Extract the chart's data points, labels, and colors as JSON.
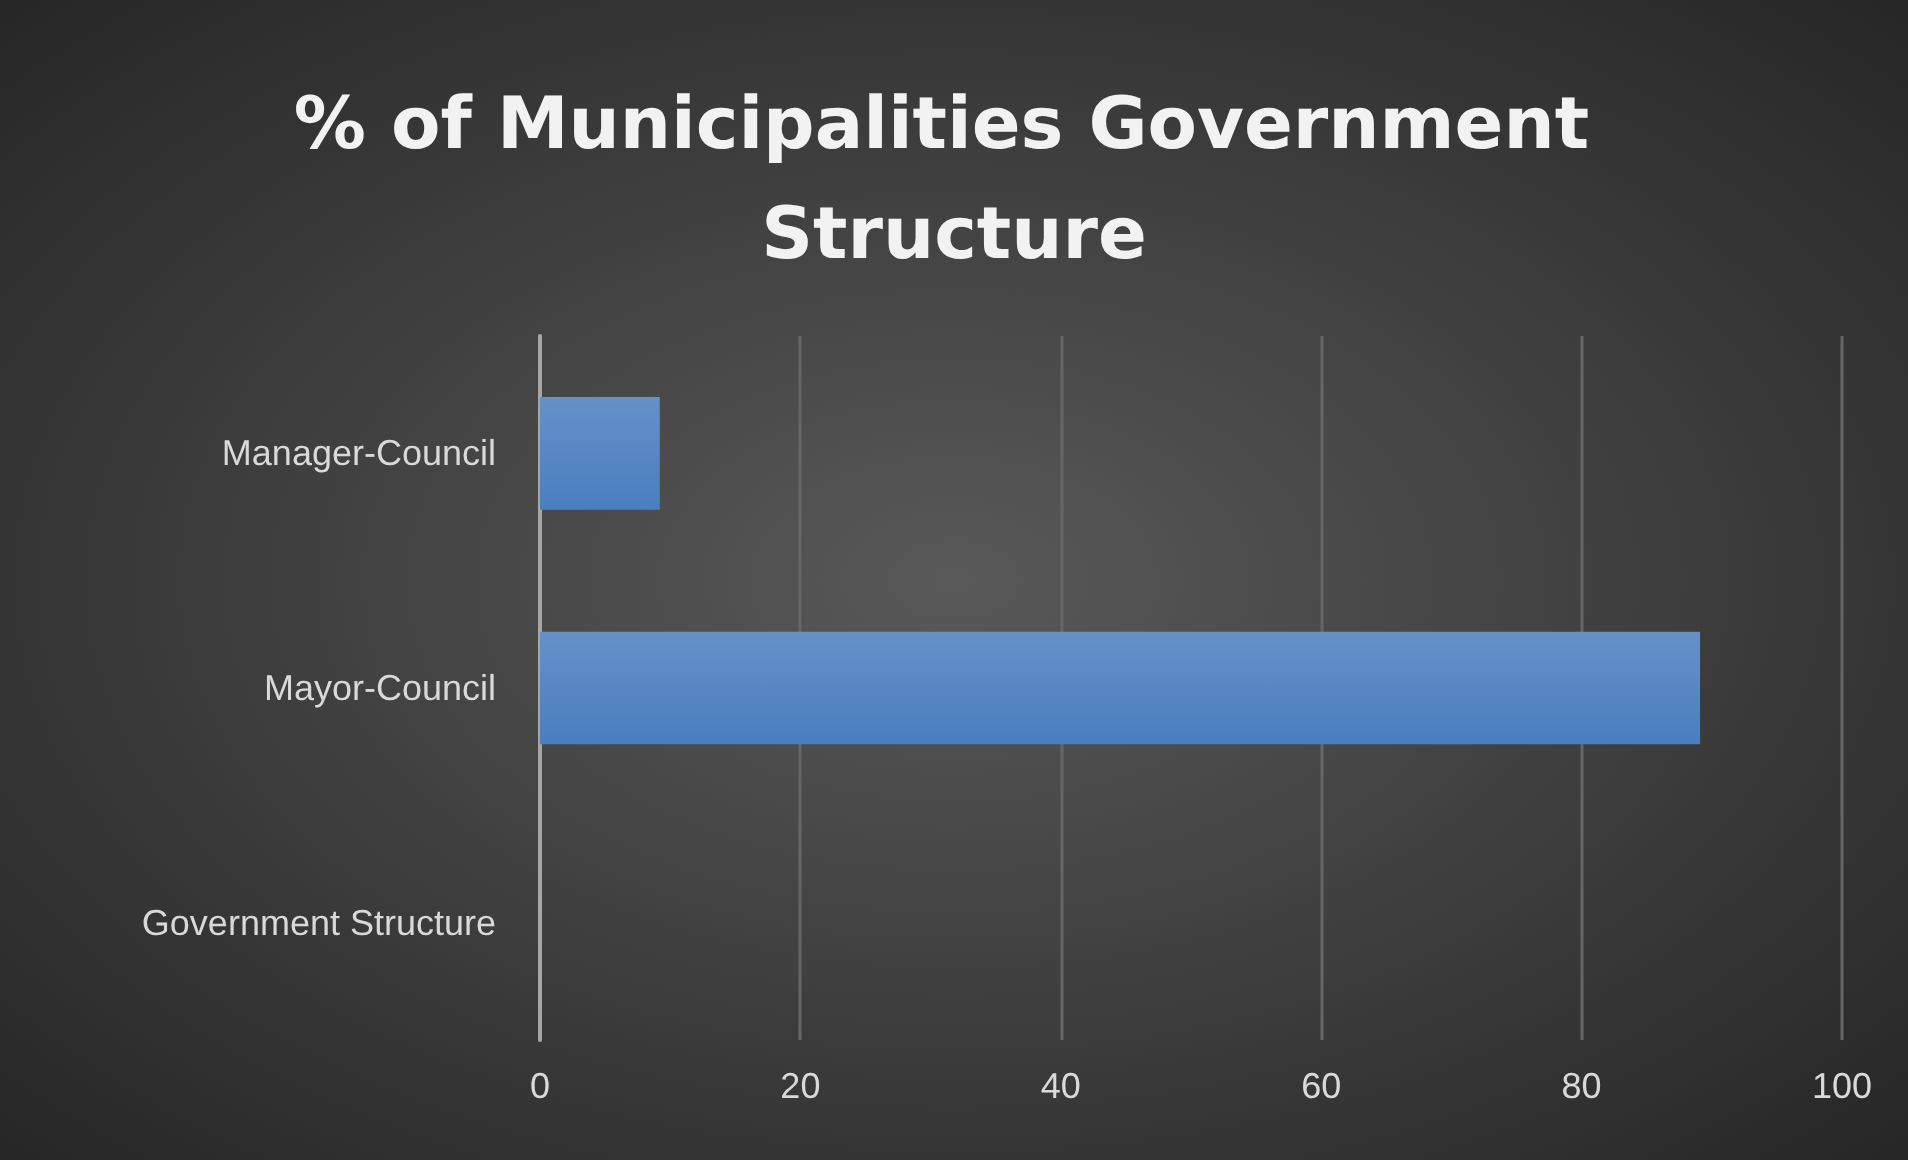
{
  "chart_data": {
    "type": "bar",
    "orientation": "horizontal",
    "title": "% of Municipalities Government Structure",
    "categories": [
      "Manager-Council",
      "Mayor-Council",
      "Government Structure"
    ],
    "values": [
      9.2,
      89.1,
      null
    ],
    "color": "#4a7ebf",
    "xlim": [
      0,
      100
    ],
    "xticks": [
      0,
      20,
      40,
      60,
      80,
      100
    ],
    "grid": "x"
  }
}
